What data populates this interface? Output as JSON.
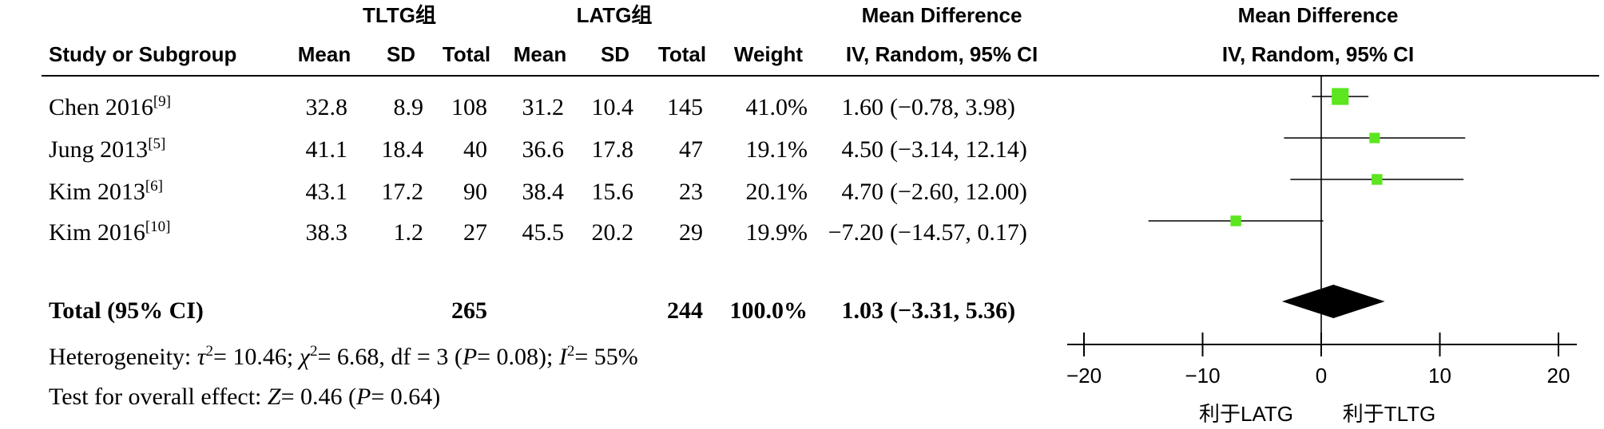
{
  "headers": {
    "group1": "TLTG组",
    "group2": "LATG组",
    "md_table": "Mean Difference",
    "study": "Study or Subgroup",
    "mean1": "Mean",
    "sd1": "SD",
    "total1": "Total",
    "mean2": "Mean",
    "sd2": "SD",
    "total2": "Total",
    "weight": "Weight",
    "method_table": "IV, Random, 95% CI"
  },
  "studies": [
    {
      "name": "Chen 2016",
      "ref": "[9]",
      "mean1": "32.8",
      "sd1": "8.9",
      "total1": "108",
      "mean2": "31.2",
      "sd2": "10.4",
      "total2": "145",
      "weight": "41.0%",
      "md": "1.60",
      "ci": "(−0.78, 3.98)"
    },
    {
      "name": "Jung 2013",
      "ref": "[5]",
      "mean1": "41.1",
      "sd1": "18.4",
      "total1": "40",
      "mean2": "36.6",
      "sd2": "17.8",
      "total2": "47",
      "weight": "19.1%",
      "md": "4.50",
      "ci": "(−3.14, 12.14)"
    },
    {
      "name": "Kim 2013",
      "ref": "[6]",
      "mean1": "43.1",
      "sd1": "17.2",
      "total1": "90",
      "mean2": "38.4",
      "sd2": "15.6",
      "total2": "23",
      "weight": "20.1%",
      "md": "4.70",
      "ci": "(−2.60, 12.00)"
    },
    {
      "name": "Kim 2016",
      "ref": "[10]",
      "mean1": "38.3",
      "sd1": "1.2",
      "total1": "27",
      "mean2": "45.5",
      "sd2": "20.2",
      "total2": "29",
      "weight": "19.9%",
      "md": "−7.20",
      "ci": "(−14.57, 0.17)"
    }
  ],
  "total": {
    "label": "Total (95% CI)",
    "total1": "265",
    "total2": "244",
    "weight": "100.0%",
    "md": "1.03",
    "ci": "(−3.31, 5.36)"
  },
  "heterogeneity": [
    "Heterogeneity: ",
    "τ",
    "2",
    "= 10.46; ",
    "χ",
    "2",
    "= 6.68, df = 3 (",
    "P",
    "= 0.08); ",
    "I",
    "2",
    "= 55%"
  ],
  "overall_effect": [
    "Test for overall effect: ",
    "Z",
    "= 0.46 (",
    "P",
    "= 0.64)"
  ],
  "colors": {
    "square": "#5be61f",
    "diamond": "#000000",
    "lines": "#000000"
  },
  "chart_data": {
    "type": "scatter",
    "title": "Mean Difference",
    "subtitle": "IV, Random, 95% CI",
    "xlim": [
      -20,
      20
    ],
    "xticks": [
      -20,
      -10,
      0,
      10,
      20
    ],
    "xticklabels": [
      "−20",
      "−10",
      "0",
      "10",
      "20"
    ],
    "reference_line": 0,
    "favours_left": "利于LATG",
    "favours_right": "利于TLTG",
    "grid": false,
    "points": [
      {
        "estimate": 1.6,
        "ci_low": -0.78,
        "ci_high": 3.98,
        "weight": 41.0
      },
      {
        "estimate": 4.5,
        "ci_low": -3.14,
        "ci_high": 12.14,
        "weight": 19.1
      },
      {
        "estimate": 4.7,
        "ci_low": -2.6,
        "ci_high": 12.0,
        "weight": 20.1
      },
      {
        "estimate": -7.2,
        "ci_low": -14.57,
        "ci_high": 0.17,
        "weight": 19.9
      }
    ],
    "pooled": {
      "estimate": 1.03,
      "ci_low": -3.31,
      "ci_high": 5.36
    }
  }
}
